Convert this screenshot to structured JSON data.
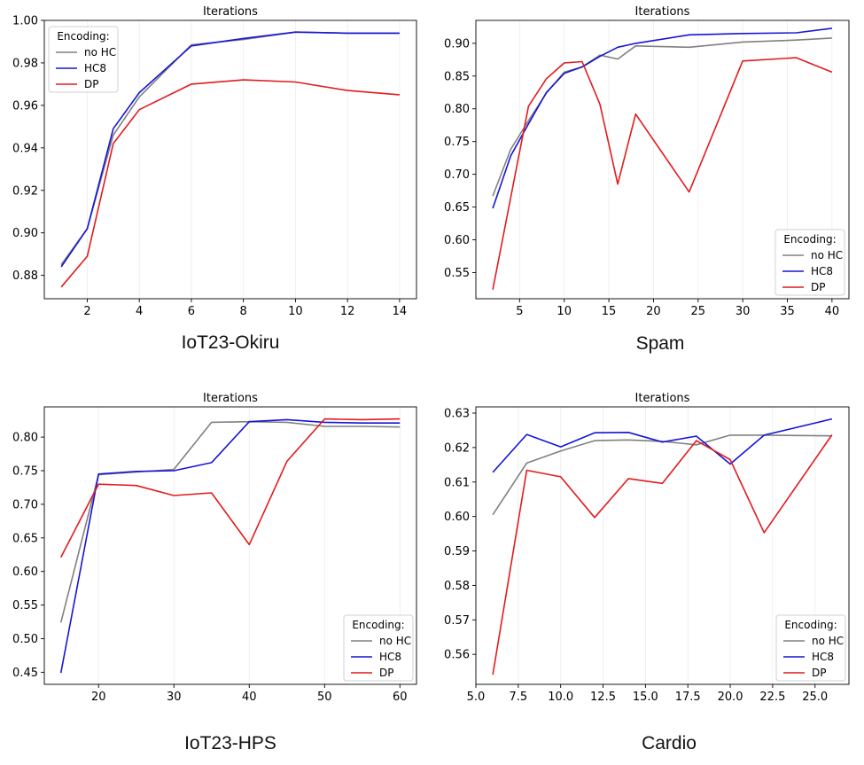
{
  "chart_data": [
    {
      "type": "line",
      "caption": "IoT23-Okiru",
      "title": "Iterations",
      "xlabel": "",
      "ylabel": "",
      "xlim": [
        0.35,
        14.65
      ],
      "ylim": [
        0.869,
        1.0
      ],
      "xticks": [
        2,
        4,
        6,
        8,
        10,
        12,
        14
      ],
      "xtick_labels": [
        "2",
        "4",
        "6",
        "8",
        "10",
        "12",
        "14"
      ],
      "yticks": [
        0.88,
        0.9,
        0.92,
        0.94,
        0.96,
        0.98,
        1.0
      ],
      "ytick_labels": [
        "0.88",
        "0.90",
        "0.92",
        "0.94",
        "0.96",
        "0.98",
        "1.00"
      ],
      "grid": "vertical",
      "legend": {
        "title": "Encoding:",
        "position": "upper-left"
      },
      "series": [
        {
          "name": "no HC",
          "color": "#808080",
          "x": [
            1,
            2,
            3,
            4,
            6,
            8,
            10,
            12,
            14
          ],
          "y": [
            0.885,
            0.902,
            0.946,
            0.964,
            0.9885,
            0.991,
            0.9945,
            0.994,
            0.994
          ]
        },
        {
          "name": "HC8",
          "color": "#1515d6",
          "x": [
            1,
            2,
            3,
            4,
            6,
            8,
            10,
            12,
            14
          ],
          "y": [
            0.884,
            0.902,
            0.949,
            0.966,
            0.988,
            0.9915,
            0.9945,
            0.994,
            0.994
          ]
        },
        {
          "name": "DP",
          "color": "#e31a1c",
          "x": [
            1,
            2,
            3,
            4,
            6,
            8,
            10,
            12,
            14
          ],
          "y": [
            0.8745,
            0.889,
            0.942,
            0.958,
            0.97,
            0.972,
            0.971,
            0.967,
            0.965
          ]
        }
      ]
    },
    {
      "type": "line",
      "caption": "Spam",
      "title": "Iterations",
      "xlabel": "",
      "ylabel": "",
      "xlim": [
        0.1,
        41.9
      ],
      "ylim": [
        0.51,
        0.935
      ],
      "xticks": [
        5,
        10,
        15,
        20,
        25,
        30,
        35,
        40
      ],
      "xtick_labels": [
        "5",
        "10",
        "15",
        "20",
        "25",
        "30",
        "35",
        "40"
      ],
      "yticks": [
        0.55,
        0.6,
        0.65,
        0.7,
        0.75,
        0.8,
        0.85,
        0.9
      ],
      "ytick_labels": [
        "0.55",
        "0.60",
        "0.65",
        "0.70",
        "0.75",
        "0.80",
        "0.85",
        "0.90"
      ],
      "grid": "vertical",
      "legend": {
        "title": "Encoding:",
        "position": "lower-right"
      },
      "series": [
        {
          "name": "no HC",
          "color": "#808080",
          "x": [
            2,
            4,
            6,
            8,
            10,
            12,
            14,
            16,
            18,
            24,
            30,
            36,
            40
          ],
          "y": [
            0.667,
            0.738,
            0.782,
            0.824,
            0.856,
            0.864,
            0.882,
            0.876,
            0.896,
            0.894,
            0.902,
            0.905,
            0.908
          ]
        },
        {
          "name": "HC8",
          "color": "#1515d6",
          "x": [
            2,
            4,
            6,
            8,
            10,
            12,
            14,
            16,
            18,
            24,
            30,
            36,
            40
          ],
          "y": [
            0.648,
            0.728,
            0.777,
            0.825,
            0.854,
            0.864,
            0.88,
            0.894,
            0.9,
            0.913,
            0.915,
            0.916,
            0.923
          ]
        },
        {
          "name": "DP",
          "color": "#e31a1c",
          "x": [
            2,
            6,
            8,
            10,
            12,
            14,
            16,
            18,
            24,
            30,
            36,
            40
          ],
          "y": [
            0.524,
            0.804,
            0.846,
            0.87,
            0.872,
            0.807,
            0.685,
            0.792,
            0.673,
            0.873,
            0.878,
            0.856
          ]
        }
      ]
    },
    {
      "type": "line",
      "caption": "IoT23-HPS",
      "title": "Iterations",
      "xlabel": "",
      "ylabel": "",
      "xlim": [
        12.8,
        62.2
      ],
      "ylim": [
        0.432,
        0.845
      ],
      "xticks": [
        20,
        30,
        40,
        50,
        60
      ],
      "xtick_labels": [
        "20",
        "30",
        "40",
        "50",
        "60"
      ],
      "yticks": [
        0.45,
        0.5,
        0.55,
        0.6,
        0.65,
        0.7,
        0.75,
        0.8
      ],
      "ytick_labels": [
        "0.45",
        "0.50",
        "0.55",
        "0.60",
        "0.65",
        "0.70",
        "0.75",
        "0.80"
      ],
      "grid": "vertical",
      "legend": {
        "title": "Encoding:",
        "position": "lower-right"
      },
      "series": [
        {
          "name": "no HC",
          "color": "#808080",
          "x": [
            15,
            20,
            25,
            30,
            35,
            40,
            45,
            50,
            55,
            60
          ],
          "y": [
            0.524,
            0.744,
            0.748,
            0.752,
            0.822,
            0.823,
            0.822,
            0.816,
            0.816,
            0.815
          ]
        },
        {
          "name": "HC8",
          "color": "#1515d6",
          "x": [
            15,
            20,
            25,
            30,
            35,
            40,
            45,
            50,
            55,
            60
          ],
          "y": [
            0.449,
            0.745,
            0.749,
            0.75,
            0.762,
            0.823,
            0.826,
            0.822,
            0.821,
            0.821
          ]
        },
        {
          "name": "DP",
          "color": "#e31a1c",
          "x": [
            15,
            20,
            25,
            30,
            35,
            40,
            45,
            50,
            55,
            60
          ],
          "y": [
            0.621,
            0.73,
            0.728,
            0.713,
            0.717,
            0.64,
            0.764,
            0.827,
            0.826,
            0.827
          ]
        }
      ]
    },
    {
      "type": "line",
      "caption": "Cardio",
      "title": "Iterations",
      "xlabel": "",
      "ylabel": "",
      "xlim": [
        5.0,
        27.0
      ],
      "ylim": [
        0.5513,
        0.6318
      ],
      "xticks": [
        5.0,
        7.5,
        10.0,
        12.5,
        15.0,
        17.5,
        20.0,
        22.5,
        25.0
      ],
      "xtick_labels": [
        "5.0",
        "7.5",
        "10.0",
        "12.5",
        "15.0",
        "17.5",
        "20.0",
        "22.5",
        "25.0"
      ],
      "yticks": [
        0.56,
        0.57,
        0.58,
        0.59,
        0.6,
        0.61,
        0.62,
        0.63
      ],
      "ytick_labels": [
        "0.56",
        "0.57",
        "0.58",
        "0.59",
        "0.60",
        "0.61",
        "0.62",
        "0.63"
      ],
      "grid": "vertical",
      "legend": {
        "title": "Encoding:",
        "position": "lower-right"
      },
      "series": [
        {
          "name": "no HC",
          "color": "#808080",
          "x": [
            6,
            8,
            10,
            12,
            14,
            16,
            18,
            20,
            22,
            24,
            26
          ],
          "y": [
            0.6005,
            0.6155,
            0.619,
            0.622,
            0.6222,
            0.6218,
            0.6208,
            0.6236,
            0.6236,
            0.6235,
            0.6234
          ]
        },
        {
          "name": "HC8",
          "color": "#1515d6",
          "x": [
            6,
            8,
            10,
            12,
            14,
            16,
            18,
            20,
            22,
            26
          ],
          "y": [
            0.6128,
            0.6238,
            0.6202,
            0.6243,
            0.6244,
            0.6216,
            0.6233,
            0.6152,
            0.6236,
            0.6283
          ]
        },
        {
          "name": "DP",
          "color": "#e31a1c",
          "x": [
            6,
            8,
            10,
            12,
            14,
            16,
            18,
            20,
            22,
            26
          ],
          "y": [
            0.5541,
            0.6134,
            0.6115,
            0.5997,
            0.611,
            0.6096,
            0.622,
            0.6165,
            0.5953,
            0.6237
          ]
        }
      ]
    }
  ]
}
